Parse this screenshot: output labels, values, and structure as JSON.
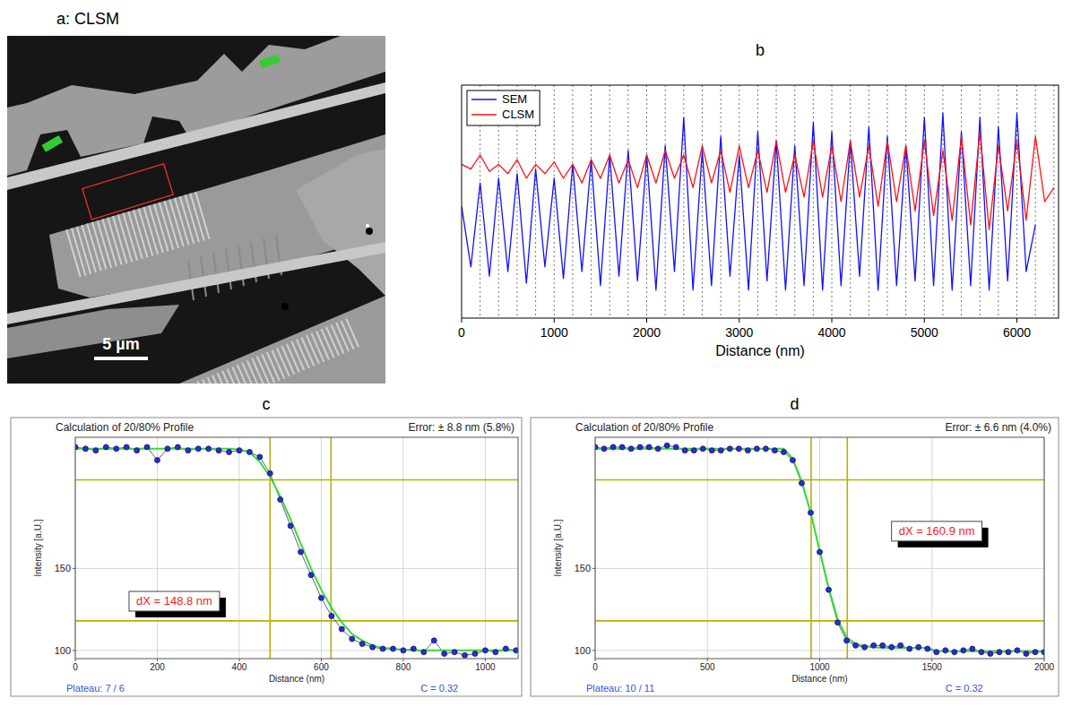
{
  "image_panel": {
    "title": "a: CLSM",
    "scale_bar": "5 µm"
  },
  "chart_data": [
    {
      "type": "line",
      "panel": "b",
      "x": [
        0,
        100,
        200,
        300,
        400,
        500,
        600,
        700,
        800,
        900,
        1000,
        1100,
        1200,
        1300,
        1400,
        1500,
        1600,
        1700,
        1800,
        1900,
        2000,
        2100,
        2200,
        2300,
        2400,
        2500,
        2600,
        2700,
        2800,
        2900,
        3000,
        3100,
        3200,
        3300,
        3400,
        3500,
        3600,
        3700,
        3800,
        3900,
        4000,
        4100,
        4200,
        4300,
        4400,
        4500,
        4600,
        4700,
        4800,
        4900,
        5000,
        5100,
        5200,
        5300,
        5400,
        5500,
        5600,
        5700,
        5800,
        5900,
        6000,
        6100,
        6200,
        6300,
        6400
      ],
      "series": [
        {
          "name": "SEM",
          "color": "#1010ff",
          "values": [
            48,
            22,
            58,
            18,
            60,
            20,
            62,
            15,
            64,
            22,
            60,
            17,
            66,
            20,
            68,
            14,
            70,
            18,
            72,
            16,
            70,
            12,
            74,
            20,
            86,
            12,
            72,
            14,
            78,
            18,
            70,
            12,
            80,
            16,
            76,
            12,
            74,
            14,
            84,
            12,
            80,
            14,
            76,
            18,
            82,
            12,
            78,
            14,
            74,
            16,
            86,
            14,
            88,
            12,
            80,
            14,
            86,
            12,
            82,
            16,
            88,
            20,
            40,
            null,
            null
          ]
        },
        {
          "name": "CLSM",
          "color": "#ff1010",
          "values": [
            66,
            64,
            70,
            63,
            66,
            62,
            68,
            60,
            66,
            62,
            67,
            60,
            66,
            58,
            68,
            60,
            70,
            58,
            68,
            56,
            70,
            58,
            72,
            60,
            70,
            56,
            74,
            58,
            72,
            54,
            74,
            56,
            72,
            54,
            76,
            54,
            70,
            52,
            76,
            52,
            74,
            50,
            76,
            52,
            74,
            48,
            76,
            50,
            74,
            46,
            76,
            44,
            72,
            42,
            78,
            40,
            80,
            38,
            74,
            46,
            76,
            42,
            78,
            50,
            56
          ]
        }
      ],
      "vlines": [
        200,
        400,
        600,
        800,
        1000,
        1200,
        1400,
        1600,
        1800,
        2000,
        2200,
        2400,
        2600,
        2800,
        3000,
        3200,
        3400,
        3600,
        3800,
        4000,
        4200,
        4400,
        4600,
        4800,
        5000,
        5200,
        5400,
        5600,
        5800,
        6000,
        6200,
        6400
      ],
      "xlim": [
        0,
        6450
      ],
      "ylim": [
        0,
        100
      ],
      "xticks": [
        0,
        1000,
        2000,
        3000,
        4000,
        5000,
        6000
      ],
      "xlabel": "Distance (nm)",
      "legend": "top-left",
      "tick_labels": "x"
    },
    {
      "type": "profile",
      "panel": "c",
      "title": "Calculation of 20/80% Profile",
      "error_label": "Error: ± 8.8 nm (5.8%)",
      "xlabel": "Distance (nm)",
      "ylabel": "Intensity [a.U.]",
      "x": [
        0,
        25,
        50,
        75,
        100,
        125,
        150,
        175,
        200,
        225,
        250,
        275,
        300,
        325,
        350,
        375,
        400,
        425,
        450,
        475,
        500,
        525,
        550,
        575,
        600,
        625,
        650,
        675,
        700,
        725,
        750,
        775,
        800,
        825,
        850,
        875,
        900,
        925,
        950,
        975,
        1000,
        1025,
        1050,
        1075
      ],
      "series": [
        {
          "color": "#2b2bd6",
          "marker": "circle",
          "line_style": "solid",
          "values": [
            224,
            223,
            222,
            224,
            223,
            224,
            222,
            224,
            216,
            223,
            224,
            222,
            223,
            223,
            222,
            221,
            222,
            221,
            218,
            208,
            192,
            176,
            160,
            146,
            132,
            121,
            113,
            107,
            104,
            102,
            101,
            101,
            100,
            101,
            99,
            106,
            98,
            99,
            97,
            98,
            100,
            99,
            101,
            100
          ]
        },
        {
          "color": "#33dd33",
          "marker": "none",
          "line_style": "solid",
          "values": [
            223,
            223,
            223,
            223,
            223,
            223,
            223,
            223,
            223,
            223,
            223,
            223,
            223,
            223,
            223,
            223,
            222.5,
            221,
            215,
            206,
            194,
            180,
            165,
            150,
            137,
            126,
            117,
            110,
            106,
            103,
            101.5,
            101,
            100.5,
            100,
            100,
            100,
            100,
            100,
            100,
            100,
            100,
            100,
            100,
            100
          ]
        }
      ],
      "edges": [
        475,
        623.8
      ],
      "levels": [
        118,
        204
      ],
      "dx_label": "dX = 148.8 nm",
      "plateau_label": "Plateau: 7 / 6",
      "c_label": "C = 0.32",
      "xlim": [
        0,
        1080
      ],
      "ylim": [
        95,
        230
      ],
      "xticks": [
        0,
        200,
        400,
        600,
        800,
        1000
      ],
      "yticks": [
        100,
        150
      ],
      "grid": true
    },
    {
      "type": "profile",
      "panel": "d",
      "title": "Calculation of 20/80% Profile",
      "error_label": "Error: ± 6.6 nm (4.0%)",
      "xlabel": "Distance (nm)",
      "ylabel": "Intensity [a.U.]",
      "x": [
        0,
        40,
        80,
        120,
        160,
        200,
        240,
        280,
        320,
        360,
        400,
        440,
        480,
        520,
        560,
        600,
        640,
        680,
        720,
        760,
        800,
        840,
        880,
        920,
        960,
        1000,
        1040,
        1080,
        1120,
        1160,
        1200,
        1240,
        1280,
        1320,
        1360,
        1400,
        1440,
        1480,
        1520,
        1560,
        1600,
        1640,
        1680,
        1720,
        1760,
        1800,
        1840,
        1880,
        1920,
        1960,
        2000
      ],
      "series": [
        {
          "color": "#2b2bd6",
          "marker": "circle",
          "line_style": "solid",
          "values": [
            224,
            223,
            224,
            224,
            223,
            224,
            224,
            223,
            225,
            224,
            222,
            222,
            223,
            222,
            222,
            223,
            223,
            222,
            223,
            223,
            222,
            221,
            216,
            202,
            184,
            160,
            137,
            117,
            106,
            103,
            102,
            103,
            103,
            102,
            103,
            101,
            102,
            101,
            99,
            100,
            99,
            100,
            101,
            99,
            98,
            99,
            99,
            100,
            98,
            99,
            99
          ]
        },
        {
          "color": "#33dd33",
          "marker": "none",
          "line_style": "solid",
          "values": [
            223,
            223,
            223,
            223,
            223,
            223,
            223,
            223,
            223,
            223,
            223,
            223,
            223,
            223,
            223,
            223,
            223,
            223,
            223,
            223,
            223,
            223,
            217,
            203,
            184,
            161,
            138,
            119,
            108,
            104,
            102.5,
            102,
            101.5,
            101.5,
            101.5,
            101.5,
            101.5,
            101.5,
            99.5,
            99.5,
            99.5,
            99.5,
            99.5,
            99.5,
            99.5,
            99.5,
            99.5,
            99.5,
            99.5,
            99.5,
            99.5
          ]
        }
      ],
      "edges": [
        962,
        1122.9
      ],
      "levels": [
        118,
        204
      ],
      "dx_label": "dX = 160.9 nm",
      "plateau_label": "Plateau: 10 / 11",
      "c_label": "C = 0.32",
      "xlim": [
        0,
        2000
      ],
      "ylim": [
        95,
        230
      ],
      "xticks": [
        0,
        500,
        1000,
        1500,
        2000
      ],
      "yticks": [
        100,
        150
      ],
      "grid": true
    }
  ]
}
